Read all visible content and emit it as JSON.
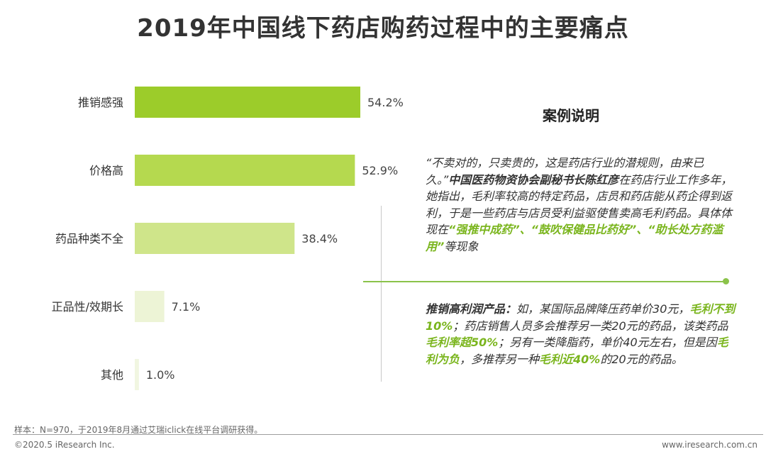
{
  "title": "2019年中国线下药店购药过程中的主要痛点",
  "chart_data": {
    "type": "bar",
    "orientation": "horizontal",
    "title": "2019年中国线下药店购药过程中的主要痛点",
    "categories": [
      "推销感强",
      "价格高",
      "药品种类不全",
      "正品性/效期长",
      "其他"
    ],
    "values": [
      54.2,
      52.9,
      38.4,
      7.1,
      1.0
    ],
    "value_labels": [
      "54.2%",
      "52.9%",
      "38.4%",
      "7.1%",
      "1.0%"
    ],
    "colors": [
      "#9ccc2a",
      "#b5d94f",
      "#cfe58a",
      "#edf4d6",
      "#f1f6e1"
    ],
    "xlim": [
      0,
      54.2
    ],
    "grid": false,
    "legend": "none"
  },
  "case": {
    "title": "案例说明",
    "p1": [
      {
        "text": "“不卖对的，只卖贵的，这是药店行业的潜规则，由来已久。”",
        "style": ""
      },
      {
        "text": "中国医药物资协会副秘书长陈红彦",
        "style": "b"
      },
      {
        "text": "在药店行业工作多年，她指出，毛利率较高的特定药品，店员和药店能从药企得到返利，于是一些药店与店员受利益驱使售卖高毛利药品。具体体现在",
        "style": ""
      },
      {
        "text": "“强推中成药”、“鼓吹保健品比药好”、“助长处方药滥用”",
        "style": "g"
      },
      {
        "text": "等现象",
        "style": ""
      }
    ],
    "p2": [
      {
        "text": "推销高利润产品：",
        "style": "b"
      },
      {
        "text": "如，某国际品牌降压药单价30元，",
        "style": ""
      },
      {
        "text": "毛利不到10%",
        "style": "g"
      },
      {
        "text": "；药店销售人员多会推荐另一类20元的药品，该类药品",
        "style": ""
      },
      {
        "text": "毛利率超50%",
        "style": "g"
      },
      {
        "text": "；另有一类降脂药，单价40元左右，但是因",
        "style": ""
      },
      {
        "text": "毛利为负",
        "style": "g"
      },
      {
        "text": "，多推荐另一种",
        "style": ""
      },
      {
        "text": "毛利近40%",
        "style": "g"
      },
      {
        "text": "的20元的药品。",
        "style": ""
      }
    ]
  },
  "footer": {
    "sample": "样本：N=970，于2019年8月通过艾瑞iclick在线平台调研获得。",
    "copyright": "©2020.5 iResearch Inc.",
    "site": "www.iresearch.com.cn"
  }
}
